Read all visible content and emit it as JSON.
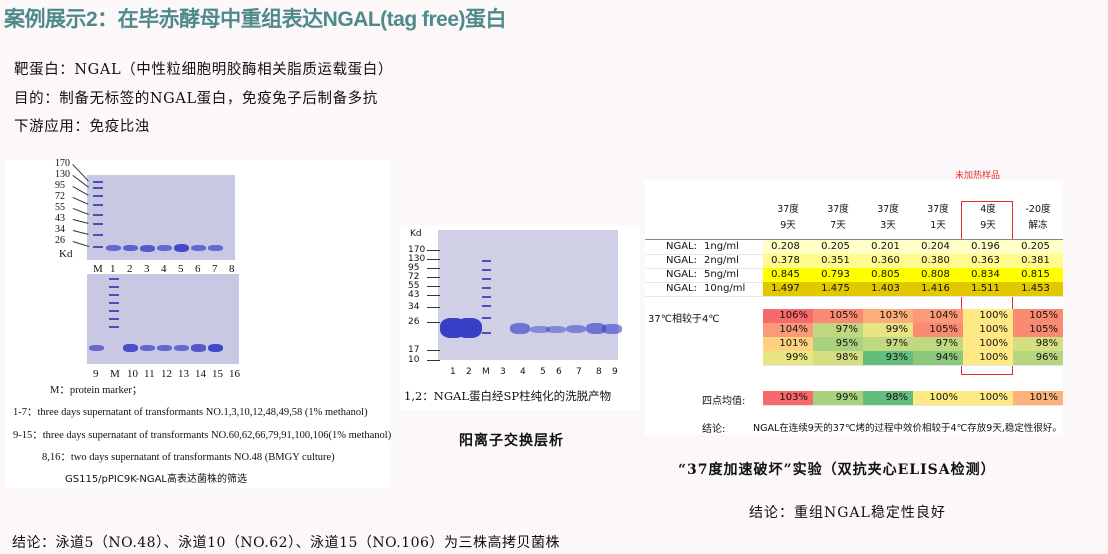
{
  "title": "案例展示2：在毕赤酵母中重组表达NGAL(tag free)蛋白",
  "intro": [
    "靶蛋白：NGAL（中性粒细胞明胶酶相关脂质运载蛋白）",
    "目的：制备无标签的NGAL蛋白，免疫兔子后制备多抗",
    "下游应用：免疫比浊"
  ],
  "left_gel": {
    "markers": [
      "170",
      "130",
      "95",
      "72",
      "55",
      "43",
      "34",
      "26"
    ],
    "unit": "Kd",
    "lanes_top": [
      "M",
      "1",
      "2",
      "3",
      "4",
      "5",
      "6",
      "7",
      "8"
    ],
    "lanes_bottom": [
      "9",
      "M",
      "10",
      "11",
      "12",
      "13",
      "14",
      "15",
      "16"
    ],
    "legend": [
      "M：protein marker；",
      "1-7：three days supernatant of transformants NO.1,3,10,12,48,49,58 (1% methanol)",
      "9-15：three days supernatant of transformants NO.60,62,66,79,91,100,106(1% methanol)",
      "8,16：two days supernatant of transformants NO.48 (BMGY culture)"
    ],
    "caption": "GS115/pPIC9K-NGAL高表达菌株的筛选"
  },
  "mid_gel": {
    "unit": "Kd",
    "markers": [
      "170",
      "130",
      "95",
      "72",
      "55",
      "43",
      "34",
      "26",
      "17",
      "10"
    ],
    "lanes": [
      "1",
      "2",
      "M",
      "3",
      "4",
      "5",
      "6",
      "7",
      "8",
      "9"
    ],
    "legend": "1,2：NGAL蛋白经SP柱纯化的洗脱产物",
    "caption": "阳离子交换层析"
  },
  "table": {
    "note": "未加热样品",
    "headers": [
      [
        "37度",
        "9天"
      ],
      [
        "37度",
        "7天"
      ],
      [
        "37度",
        "3天"
      ],
      [
        "37度",
        "1天"
      ],
      [
        "4度",
        "9天"
      ],
      [
        "-20度",
        "解冻"
      ]
    ],
    "od_rows": [
      {
        "label": "NGAL:",
        "conc": "1ng/ml",
        "values": [
          "0.208",
          "0.205",
          "0.201",
          "0.204",
          "0.196",
          "0.205"
        ],
        "color": "#ffffc8"
      },
      {
        "label": "NGAL:",
        "conc": "2ng/ml",
        "values": [
          "0.378",
          "0.351",
          "0.360",
          "0.380",
          "0.363",
          "0.381"
        ],
        "color": "#fffb8c"
      },
      {
        "label": "NGAL:",
        "conc": "5ng/ml",
        "values": [
          "0.845",
          "0.793",
          "0.805",
          "0.808",
          "0.834",
          "0.815"
        ],
        "color": "#ffff00"
      },
      {
        "label": "NGAL:",
        "conc": "10ng/ml",
        "values": [
          "1.497",
          "1.475",
          "1.403",
          "1.416",
          "1.511",
          "1.453"
        ],
        "color": "#e2c800"
      }
    ],
    "ratio_label": "37℃相较于4℃",
    "ratio_rows": [
      {
        "values": [
          "106%",
          "105%",
          "103%",
          "104%",
          "100%",
          "105%"
        ],
        "colors": [
          "#f8696b",
          "#fa8a72",
          "#fcae7a",
          "#fb9a76",
          "#ffe984",
          "#fa8a72"
        ]
      },
      {
        "values": [
          "104%",
          "97%",
          "99%",
          "105%",
          "100%",
          "105%"
        ],
        "colors": [
          "#fb9a76",
          "#c0d980",
          "#e8e583",
          "#fa8a72",
          "#ffe984",
          "#fa8a72"
        ]
      },
      {
        "values": [
          "101%",
          "95%",
          "97%",
          "97%",
          "100%",
          "98%"
        ],
        "colors": [
          "#fdd17f",
          "#a8d27e",
          "#c0d980",
          "#c0d980",
          "#ffe984",
          "#d4df81"
        ]
      },
      {
        "values": [
          "99%",
          "98%",
          "93%",
          "94%",
          "100%",
          "96%"
        ],
        "colors": [
          "#e8e583",
          "#d4df81",
          "#63be7b",
          "#8ac97c",
          "#ffe984",
          "#b6d67f"
        ]
      }
    ],
    "avg_label": "四点均值:",
    "avg_row": {
      "values": [
        "103%",
        "99%",
        "98%",
        "100%",
        "100%",
        "101%"
      ],
      "colors": [
        "#f8696b",
        "#a8d27e",
        "#63be7b",
        "#ffe984",
        "#ffe984",
        "#fcb27a"
      ]
    },
    "conclusion_label": "结论:",
    "conclusion": "NGAL在连续9天的37℃烤的过程中效价相较于4℃存放9天,稳定性很好。",
    "highlight_color": "#e03030"
  },
  "right_caption": "“37度加速破坏”实验（双抗夹心ELISA检测）",
  "right_conclusion": "结论：重组NGAL稳定性良好",
  "bottom_conclusion": "结论：泳道5（NO.48）、泳道10（NO.62）、泳道15（NO.106）为三株高拷贝菌株"
}
